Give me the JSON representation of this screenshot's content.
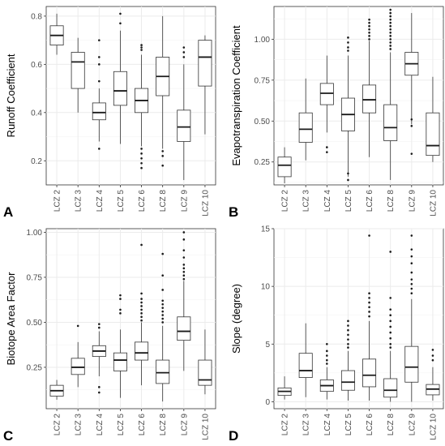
{
  "chart_data": [
    {
      "type": "boxplot",
      "panel_label": "A",
      "ylabel": "Runoff Coefficient",
      "categories": [
        "LCZ 2",
        "LCZ 3",
        "LCZ 4",
        "LCZ 5",
        "LCZ 6",
        "LCZ 8",
        "LCZ 9",
        "LCZ 10"
      ],
      "ylim": [
        0.1,
        0.84
      ],
      "yticks": [
        0.2,
        0.4,
        0.6,
        0.8
      ],
      "ytick_labels": [
        "0.2",
        "0.4",
        "0.6",
        "0.8"
      ],
      "boxes": [
        {
          "min": 0.64,
          "q1": 0.68,
          "median": 0.72,
          "q3": 0.76,
          "max": 0.81,
          "outliers": []
        },
        {
          "min": 0.4,
          "q1": 0.5,
          "median": 0.61,
          "q3": 0.65,
          "max": 0.71,
          "outliers": []
        },
        {
          "min": 0.28,
          "q1": 0.37,
          "median": 0.4,
          "q3": 0.44,
          "max": 0.5,
          "outliers": [
            0.7,
            0.63,
            0.6,
            0.53,
            0.25
          ]
        },
        {
          "min": 0.27,
          "q1": 0.43,
          "median": 0.49,
          "q3": 0.57,
          "max": 0.74,
          "outliers": [
            0.81,
            0.77
          ]
        },
        {
          "min": 0.26,
          "q1": 0.4,
          "median": 0.45,
          "q3": 0.5,
          "max": 0.64,
          "outliers": [
            0.68,
            0.67,
            0.66,
            0.25,
            0.23,
            0.21,
            0.19,
            0.17
          ]
        },
        {
          "min": 0.25,
          "q1": 0.47,
          "median": 0.55,
          "q3": 0.63,
          "max": 0.8,
          "outliers": [
            0.24,
            0.22,
            0.18
          ]
        },
        {
          "min": 0.12,
          "q1": 0.28,
          "median": 0.34,
          "q3": 0.41,
          "max": 0.6,
          "outliers": [
            0.67,
            0.65,
            0.63
          ]
        },
        {
          "min": 0.31,
          "q1": 0.51,
          "median": 0.63,
          "q3": 0.7,
          "max": 0.72,
          "outliers": []
        }
      ]
    },
    {
      "type": "boxplot",
      "panel_label": "B",
      "ylabel": "Evapotranspiration Coefficient",
      "categories": [
        "LCZ 2",
        "LCZ 3",
        "LCZ 4",
        "LCZ 5",
        "LCZ 6",
        "LCZ 8",
        "LCZ 9",
        "LCZ 10"
      ],
      "ylim": [
        0.11,
        1.2
      ],
      "yticks": [
        0.25,
        0.5,
        0.75,
        1.0
      ],
      "ytick_labels": [
        "0.25",
        "0.50",
        "0.75",
        "1.00"
      ],
      "boxes": [
        {
          "min": 0.12,
          "q1": 0.16,
          "median": 0.23,
          "q3": 0.28,
          "max": 0.34,
          "outliers": []
        },
        {
          "min": 0.26,
          "q1": 0.37,
          "median": 0.45,
          "q3": 0.55,
          "max": 0.76,
          "outliers": []
        },
        {
          "min": 0.43,
          "q1": 0.6,
          "median": 0.67,
          "q3": 0.73,
          "max": 0.9,
          "outliers": [
            0.34,
            0.31
          ]
        },
        {
          "min": 0.16,
          "q1": 0.44,
          "median": 0.54,
          "q3": 0.64,
          "max": 0.9,
          "outliers": [
            1.01,
            0.98,
            0.95,
            0.93,
            0.18,
            0.14
          ]
        },
        {
          "min": 0.28,
          "q1": 0.55,
          "median": 0.63,
          "q3": 0.72,
          "max": 0.99,
          "outliers": [
            1.12,
            1.1,
            1.08,
            1.06,
            1.04,
            1.02,
            1.0
          ]
        },
        {
          "min": 0.14,
          "q1": 0.38,
          "median": 0.46,
          "q3": 0.6,
          "max": 0.92,
          "outliers": [
            1.18,
            1.16,
            1.14,
            1.12,
            1.1,
            1.08,
            1.06,
            1.04,
            1.02,
            1.0,
            0.98,
            0.96,
            0.94
          ]
        },
        {
          "min": 0.48,
          "q1": 0.78,
          "median": 0.85,
          "q3": 0.92,
          "max": 1.16,
          "outliers": [
            0.51,
            0.47,
            0.3
          ]
        },
        {
          "min": 0.25,
          "q1": 0.29,
          "median": 0.35,
          "q3": 0.55,
          "max": 0.77,
          "outliers": []
        }
      ]
    },
    {
      "type": "boxplot",
      "panel_label": "C",
      "ylabel": "Biotope Area Factor",
      "categories": [
        "LCZ 2",
        "LCZ 3",
        "LCZ 4",
        "LCZ 5",
        "LCZ 6",
        "LCZ 8",
        "LCZ 9",
        "LCZ 10"
      ],
      "ylim": [
        0.02,
        1.02
      ],
      "yticks": [
        0.25,
        0.5,
        0.75,
        1.0
      ],
      "ytick_labels": [
        "0.25",
        "0.50",
        "0.75",
        "1.00"
      ],
      "boxes": [
        {
          "min": 0.07,
          "q1": 0.09,
          "median": 0.12,
          "q3": 0.15,
          "max": 0.18,
          "outliers": []
        },
        {
          "min": 0.14,
          "q1": 0.21,
          "median": 0.25,
          "q3": 0.3,
          "max": 0.39,
          "outliers": [
            0.48
          ]
        },
        {
          "min": 0.2,
          "q1": 0.31,
          "median": 0.34,
          "q3": 0.37,
          "max": 0.45,
          "outliers": [
            0.49,
            0.47,
            0.14,
            0.11
          ]
        },
        {
          "min": 0.08,
          "q1": 0.23,
          "median": 0.29,
          "q3": 0.33,
          "max": 0.46,
          "outliers": [
            0.65,
            0.63,
            0.57,
            0.55
          ]
        },
        {
          "min": 0.15,
          "q1": 0.29,
          "median": 0.33,
          "q3": 0.39,
          "max": 0.5,
          "outliers": [
            0.93,
            0.66,
            0.63,
            0.61,
            0.59,
            0.57,
            0.55,
            0.53,
            0.51
          ]
        },
        {
          "min": 0.06,
          "q1": 0.16,
          "median": 0.22,
          "q3": 0.29,
          "max": 0.48,
          "outliers": [
            0.88,
            0.76,
            0.68,
            0.62,
            0.6,
            0.58,
            0.56,
            0.54,
            0.52,
            0.5
          ]
        },
        {
          "min": 0.23,
          "q1": 0.4,
          "median": 0.45,
          "q3": 0.53,
          "max": 0.73,
          "outliers": [
            1.0,
            0.96,
            0.9,
            0.86,
            0.82,
            0.8,
            0.78,
            0.76,
            0.74
          ]
        },
        {
          "min": 0.1,
          "q1": 0.15,
          "median": 0.18,
          "q3": 0.29,
          "max": 0.46,
          "outliers": []
        }
      ]
    },
    {
      "type": "boxplot",
      "panel_label": "D",
      "ylabel": "Slope (degree)",
      "categories": [
        "LCZ 2",
        "LCZ 3",
        "LCZ 4",
        "LCZ 5",
        "LCZ 6",
        "LCZ 8",
        "LCZ 9",
        "LCZ 10"
      ],
      "ylim": [
        -0.6,
        15
      ],
      "yticks": [
        0,
        5,
        10,
        15
      ],
      "ytick_labels": [
        "0",
        "5",
        "10",
        "15"
      ],
      "boxes": [
        {
          "min": 0.2,
          "q1": 0.55,
          "median": 0.9,
          "q3": 1.2,
          "max": 2.2,
          "outliers": []
        },
        {
          "min": 0.4,
          "q1": 2.1,
          "median": 2.7,
          "q3": 4.2,
          "max": 6.8,
          "outliers": []
        },
        {
          "min": 0.2,
          "q1": 0.9,
          "median": 1.4,
          "q3": 1.9,
          "max": 3.0,
          "outliers": [
            5.0,
            4.4,
            4.0,
            3.6,
            3.3
          ]
        },
        {
          "min": 0.1,
          "q1": 1.0,
          "median": 1.7,
          "q3": 2.7,
          "max": 4.4,
          "outliers": [
            7.0,
            6.6,
            6.2,
            5.8,
            5.4,
            5.0,
            4.7
          ]
        },
        {
          "min": 0.1,
          "q1": 1.3,
          "median": 2.3,
          "q3": 3.7,
          "max": 7.0,
          "outliers": [
            14.4,
            9.4,
            9.0,
            8.6,
            8.2,
            7.8,
            7.4
          ]
        },
        {
          "min": 0.0,
          "q1": 0.4,
          "median": 1.0,
          "q3": 2.0,
          "max": 4.4,
          "outliers": [
            13.0,
            9.0,
            8.0,
            7.5,
            7.0,
            6.5,
            6.0,
            5.5,
            5.0,
            4.7
          ]
        },
        {
          "min": 0.0,
          "q1": 1.7,
          "median": 3.0,
          "q3": 4.8,
          "max": 8.9,
          "outliers": [
            14.4,
            13.2,
            12.6,
            12.0,
            11.2,
            10.6,
            10.2,
            9.8,
            9.4
          ]
        },
        {
          "min": 0.1,
          "q1": 0.6,
          "median": 1.1,
          "q3": 1.5,
          "max": 3.0,
          "outliers": [
            4.5,
            4.0,
            3.6
          ]
        }
      ]
    }
  ]
}
